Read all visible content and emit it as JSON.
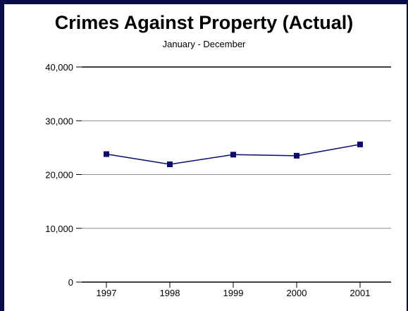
{
  "chart_data": {
    "type": "line",
    "title": "Crimes Against Property (Actual)",
    "subtitle": "January - December",
    "categories": [
      "1997",
      "1998",
      "1999",
      "2000",
      "2001"
    ],
    "series": [
      {
        "values": [
          23800,
          21900,
          23700,
          23500,
          25600
        ]
      }
    ],
    "ylim": [
      0,
      40000
    ],
    "yticks": [
      0,
      10000,
      20000,
      30000,
      40000
    ],
    "ytick_labels": [
      "0",
      "10,000",
      "20,000",
      "30,000",
      "40,000"
    ],
    "grid": true,
    "line_color": "#0a0a6e",
    "frame_color": "#0c0c4a"
  }
}
